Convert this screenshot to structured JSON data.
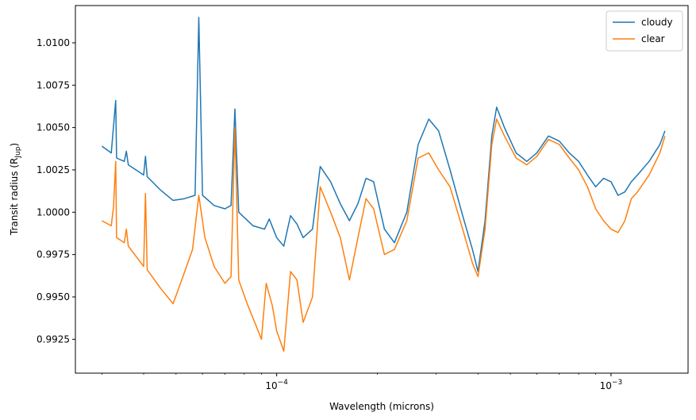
{
  "chart_data": {
    "type": "line",
    "title": "",
    "xlabel": "Wavelength (microns)",
    "ylabel_main": "Transit radius (R",
    "ylabel_sub": "Jup",
    "ylabel_end": ")",
    "xscale": "log",
    "xlim": [
      2.5e-05,
      0.0017
    ],
    "ylim": [
      0.9905,
      1.0122
    ],
    "grid": false,
    "legend_position": "top-right",
    "x_ticks": [
      {
        "value": 0.0001,
        "base": "10",
        "exp": "−4"
      },
      {
        "value": 0.001,
        "base": "10",
        "exp": "−3"
      }
    ],
    "y_ticks": [
      {
        "value": 0.9925,
        "label": "0.9925"
      },
      {
        "value": 0.995,
        "label": "0.9950"
      },
      {
        "value": 0.9975,
        "label": "0.9975"
      },
      {
        "value": 1.0,
        "label": "1.0000"
      },
      {
        "value": 1.0025,
        "label": "1.0025"
      },
      {
        "value": 1.005,
        "label": "1.0050"
      },
      {
        "value": 1.0075,
        "label": "1.0075"
      },
      {
        "value": 1.01,
        "label": "1.0100"
      }
    ],
    "series": [
      {
        "name": "cloudy",
        "color": "#1f77b4",
        "points": [
          [
            3e-05,
            1.0039
          ],
          [
            3.2e-05,
            1.0035
          ],
          [
            3.3e-05,
            1.0066
          ],
          [
            3.32e-05,
            1.0032
          ],
          [
            3.5e-05,
            1.003
          ],
          [
            3.55e-05,
            1.0036
          ],
          [
            3.6e-05,
            1.0028
          ],
          [
            4e-05,
            1.0022
          ],
          [
            4.05e-05,
            1.0033
          ],
          [
            4.1e-05,
            1.0021
          ],
          [
            4.5e-05,
            1.0013
          ],
          [
            4.9e-05,
            1.0007
          ],
          [
            5.3e-05,
            1.0008
          ],
          [
            5.7e-05,
            1.001
          ],
          [
            5.85e-05,
            1.0115
          ],
          [
            6e-05,
            1.001
          ],
          [
            6.5e-05,
            1.0004
          ],
          [
            7e-05,
            1.0002
          ],
          [
            7.3e-05,
            1.0004
          ],
          [
            7.5e-05,
            1.0061
          ],
          [
            7.7e-05,
            1.0
          ],
          [
            8.5e-05,
            0.9992
          ],
          [
            9.2e-05,
            0.999
          ],
          [
            9.5e-05,
            0.9996
          ],
          [
            0.0001,
            0.9985
          ],
          [
            0.000105,
            0.998
          ],
          [
            0.00011,
            0.9998
          ],
          [
            0.000115,
            0.9993
          ],
          [
            0.00012,
            0.9985
          ],
          [
            0.000128,
            0.999
          ],
          [
            0.000135,
            1.0027
          ],
          [
            0.000145,
            1.0018
          ],
          [
            0.000155,
            1.0005
          ],
          [
            0.000165,
            0.9995
          ],
          [
            0.000175,
            1.0005
          ],
          [
            0.000185,
            1.002
          ],
          [
            0.000195,
            1.0018
          ],
          [
            0.00021,
            0.999
          ],
          [
            0.000225,
            0.9982
          ],
          [
            0.000245,
            1.0
          ],
          [
            0.000265,
            1.004
          ],
          [
            0.000285,
            1.0055
          ],
          [
            0.000305,
            1.0048
          ],
          [
            0.00033,
            1.0025
          ],
          [
            0.00036,
            0.9998
          ],
          [
            0.000385,
            0.9978
          ],
          [
            0.0004,
            0.9965
          ],
          [
            0.00042,
            0.9995
          ],
          [
            0.00044,
            1.0045
          ],
          [
            0.000455,
            1.0062
          ],
          [
            0.00048,
            1.005
          ],
          [
            0.00052,
            1.0035
          ],
          [
            0.00056,
            1.003
          ],
          [
            0.0006,
            1.0035
          ],
          [
            0.00065,
            1.0045
          ],
          [
            0.0007,
            1.0042
          ],
          [
            0.00075,
            1.0035
          ],
          [
            0.0008,
            1.003
          ],
          [
            0.00085,
            1.0022
          ],
          [
            0.0009,
            1.0015
          ],
          [
            0.00095,
            1.002
          ],
          [
            0.001,
            1.0018
          ],
          [
            0.00105,
            1.001
          ],
          [
            0.0011,
            1.0012
          ],
          [
            0.00115,
            1.0018
          ],
          [
            0.0012,
            1.0022
          ],
          [
            0.0013,
            1.003
          ],
          [
            0.0014,
            1.004
          ],
          [
            0.00145,
            1.0048
          ]
        ]
      },
      {
        "name": "clear",
        "color": "#ff7f0e",
        "points": [
          [
            3e-05,
            0.9995
          ],
          [
            3.2e-05,
            0.9992
          ],
          [
            3.25e-05,
            1.0003
          ],
          [
            3.3e-05,
            1.003
          ],
          [
            3.32e-05,
            0.9985
          ],
          [
            3.5e-05,
            0.9982
          ],
          [
            3.55e-05,
            0.999
          ],
          [
            3.6e-05,
            0.998
          ],
          [
            4e-05,
            0.9968
          ],
          [
            4.05e-05,
            1.0011
          ],
          [
            4.1e-05,
            0.9966
          ],
          [
            4.5e-05,
            0.9955
          ],
          [
            4.9e-05,
            0.9946
          ],
          [
            5.2e-05,
            0.996
          ],
          [
            5.6e-05,
            0.9978
          ],
          [
            5.85e-05,
            1.001
          ],
          [
            6.1e-05,
            0.9985
          ],
          [
            6.5e-05,
            0.9968
          ],
          [
            7e-05,
            0.9958
          ],
          [
            7.3e-05,
            0.9962
          ],
          [
            7.5e-05,
            1.005
          ],
          [
            7.7e-05,
            0.996
          ],
          [
            8.2e-05,
            0.9945
          ],
          [
            8.6e-05,
            0.9935
          ],
          [
            9e-05,
            0.9925
          ],
          [
            9.3e-05,
            0.9958
          ],
          [
            9.7e-05,
            0.9945
          ],
          [
            0.0001,
            0.993
          ],
          [
            0.000105,
            0.9918
          ],
          [
            0.00011,
            0.9965
          ],
          [
            0.000115,
            0.996
          ],
          [
            0.00012,
            0.9935
          ],
          [
            0.000128,
            0.995
          ],
          [
            0.000135,
            1.0015
          ],
          [
            0.000145,
            1.0
          ],
          [
            0.000155,
            0.9985
          ],
          [
            0.000165,
            0.996
          ],
          [
            0.000175,
            0.9985
          ],
          [
            0.000185,
            1.0008
          ],
          [
            0.000195,
            1.0002
          ],
          [
            0.00021,
            0.9975
          ],
          [
            0.000225,
            0.9978
          ],
          [
            0.000245,
            0.9995
          ],
          [
            0.000265,
            1.0032
          ],
          [
            0.000285,
            1.0035
          ],
          [
            0.000305,
            1.0025
          ],
          [
            0.00033,
            1.0015
          ],
          [
            0.00036,
            0.999
          ],
          [
            0.000385,
            0.997
          ],
          [
            0.0004,
            0.9962
          ],
          [
            0.00042,
            0.999
          ],
          [
            0.00044,
            1.004
          ],
          [
            0.000455,
            1.0055
          ],
          [
            0.00048,
            1.0045
          ],
          [
            0.00052,
            1.0032
          ],
          [
            0.00056,
            1.0028
          ],
          [
            0.0006,
            1.0033
          ],
          [
            0.00065,
            1.0043
          ],
          [
            0.0007,
            1.004
          ],
          [
            0.00075,
            1.0032
          ],
          [
            0.0008,
            1.0025
          ],
          [
            0.00085,
            1.0015
          ],
          [
            0.0009,
            1.0002
          ],
          [
            0.00095,
            0.9995
          ],
          [
            0.001,
            0.999
          ],
          [
            0.00105,
            0.9988
          ],
          [
            0.0011,
            0.9995
          ],
          [
            0.00115,
            1.0008
          ],
          [
            0.0012,
            1.0012
          ],
          [
            0.0013,
            1.0022
          ],
          [
            0.0014,
            1.0035
          ],
          [
            0.00145,
            1.0045
          ]
        ]
      }
    ]
  }
}
